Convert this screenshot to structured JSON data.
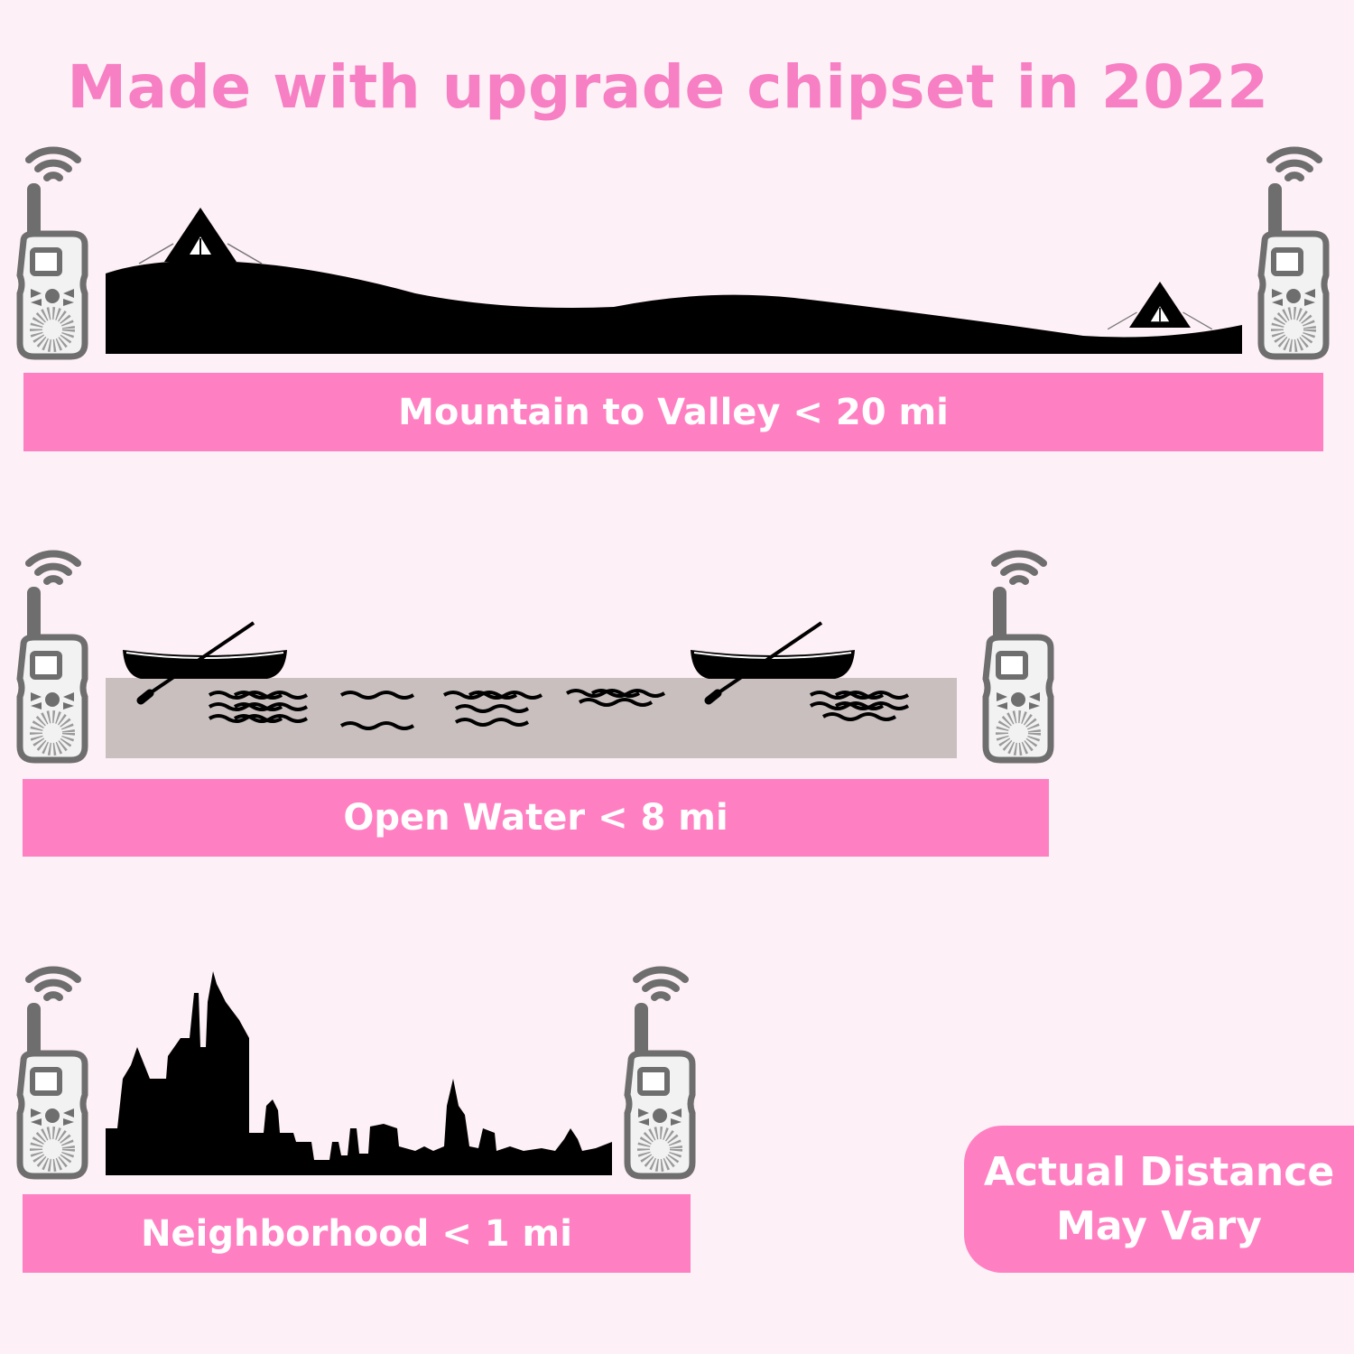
{
  "title": "Made with upgrade chipset in 2022",
  "sections": [
    {
      "label": "Mountain to Valley < 20 mi",
      "scene": "mountain-with-tents"
    },
    {
      "label": "Open Water < 8 mi",
      "scene": "water-with-canoes"
    },
    {
      "label": "Neighborhood < 1 mi",
      "scene": "city-skyline"
    }
  ],
  "note": {
    "line1": "Actual Distance",
    "line2": "May Vary"
  },
  "colors": {
    "background": "#fdf0f6",
    "accent": "#ff80c2",
    "title": "#f77fc3",
    "device": "#6e6e6e",
    "water": "#c9bfbf"
  },
  "icons": [
    "walkie-talkie-icon",
    "wifi-signal-icon",
    "tent-icon",
    "canoe-icon"
  ]
}
